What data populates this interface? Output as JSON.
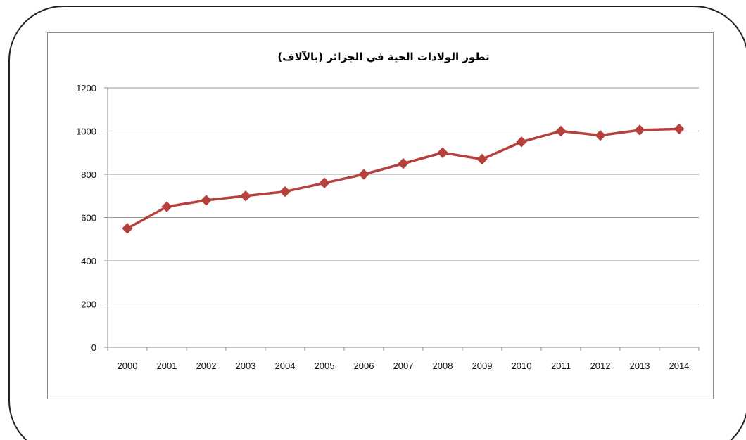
{
  "chart_data": {
    "type": "line",
    "title": "تطور الولادات الحية في الجزائر (بالآلاف)",
    "xlabel": "",
    "ylabel": "",
    "categories": [
      "2000",
      "2001",
      "2002",
      "2003",
      "2004",
      "2005",
      "2006",
      "2007",
      "2008",
      "2009",
      "2010",
      "2011",
      "2012",
      "2013",
      "2014"
    ],
    "series": [
      {
        "values": [
          550,
          650,
          680,
          700,
          720,
          760,
          800,
          850,
          900,
          870,
          950,
          1000,
          980,
          1005,
          1010
        ],
        "color": "#b5403c",
        "marker": "diamond"
      }
    ],
    "ylim": [
      0,
      1200
    ],
    "yticks": [
      0,
      200,
      400,
      600,
      800,
      1000,
      1200
    ],
    "grid": "horizontal",
    "legend": "none"
  }
}
